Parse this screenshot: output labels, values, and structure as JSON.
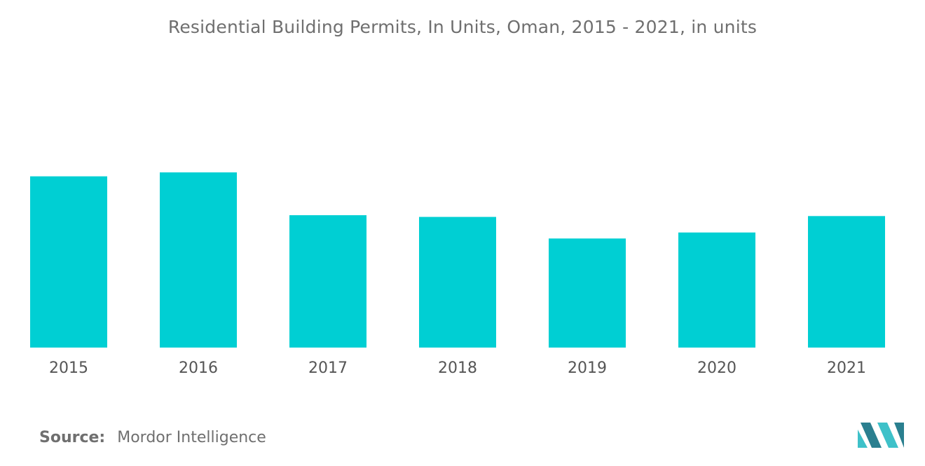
{
  "chart_data": {
    "type": "bar",
    "title": "Residential Building Permits, In Units, Oman, 2015 - 2021, in units",
    "categories": [
      "2015",
      "2016",
      "2017",
      "2018",
      "2019",
      "2020",
      "2021"
    ],
    "values": [
      1000,
      1023,
      773,
      763,
      637,
      672,
      768
    ],
    "ylim": [
      0,
      1600
    ],
    "xlabel": "",
    "ylabel": "",
    "grid": false,
    "legend": "none",
    "bar_color": "#00cfd3"
  },
  "source": {
    "label": "Source:",
    "text": "Mordor Intelligence"
  },
  "colors": {
    "logo_dark": "#2a7f8f",
    "logo_light": "#3ec1c9"
  }
}
